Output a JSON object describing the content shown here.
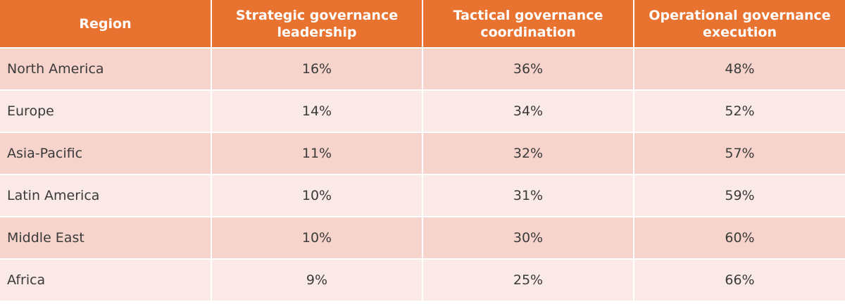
{
  "chart_data": {
    "type": "table",
    "columns": [
      "Region",
      "Strategic governance leadership",
      "Tactical governance coordination",
      "Operational governance execution"
    ],
    "rows": [
      [
        "North America",
        "16%",
        "36%",
        "48%"
      ],
      [
        "Europe",
        "14%",
        "34%",
        "52%"
      ],
      [
        "Asia-Pacific",
        "11%",
        "32%",
        "57%"
      ],
      [
        "Latin America",
        "10%",
        "31%",
        "59%"
      ],
      [
        "Middle East",
        "10%",
        "30%",
        "60%"
      ],
      [
        "Africa",
        "9%",
        "25%",
        "66%"
      ]
    ],
    "colors": {
      "header": "#E8722F",
      "row_odd": "#F6D4CB",
      "row_even": "#FAE9E6"
    }
  }
}
